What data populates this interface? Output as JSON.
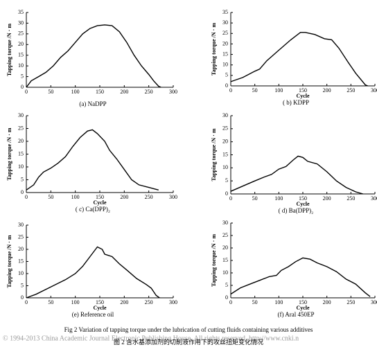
{
  "chart_data": [
    {
      "type": "line",
      "subtitle": "(a)  NaDPP",
      "ylabel": "Tapping torque /N · m",
      "color": "#000000",
      "xlim": [
        0,
        300
      ],
      "xticks": [
        0,
        50,
        100,
        150,
        200,
        250,
        300
      ],
      "ylim": [
        0,
        35
      ],
      "yticks": [
        0,
        5,
        10,
        15,
        20,
        25,
        30,
        35
      ],
      "x": [
        0,
        10,
        25,
        40,
        55,
        70,
        85,
        100,
        115,
        130,
        145,
        160,
        175,
        190,
        205,
        220,
        235,
        250,
        260,
        270,
        275
      ],
      "values": [
        0,
        3,
        5,
        7,
        10,
        14,
        17,
        21,
        25,
        27.5,
        28.8,
        29.2,
        28.8,
        26,
        21,
        15,
        10,
        6,
        3,
        0.5,
        0
      ]
    },
    {
      "type": "line",
      "subtitle": "( b)  KDPP",
      "xlabel": "Cycle",
      "ylabel": "Tapping torque /N · m",
      "color": "#000000",
      "xlim": [
        0,
        300
      ],
      "xticks": [
        0,
        50,
        100,
        150,
        200,
        250,
        300
      ],
      "ylim": [
        0,
        35
      ],
      "yticks": [
        0,
        5,
        10,
        15,
        20,
        25,
        30,
        35
      ],
      "x": [
        0,
        25,
        50,
        60,
        75,
        100,
        125,
        145,
        155,
        175,
        195,
        210,
        225,
        245,
        260,
        280,
        285
      ],
      "values": [
        2,
        4,
        7,
        8,
        12,
        17,
        22,
        25.5,
        25.5,
        24.5,
        22.5,
        22,
        18,
        11,
        6,
        0.5,
        0
      ]
    },
    {
      "type": "line",
      "subtitle": "( c)  Ca(DPP)₂",
      "xlabel": "Cycle",
      "ylabel": "Tapping torque /N · m",
      "color": "#000000",
      "xlim": [
        0,
        300
      ],
      "xticks": [
        0,
        50,
        100,
        150,
        200,
        250,
        300
      ],
      "ylim": [
        0,
        30
      ],
      "yticks": [
        0,
        5,
        10,
        15,
        20,
        25,
        30
      ],
      "x": [
        0,
        15,
        25,
        35,
        50,
        65,
        80,
        95,
        110,
        125,
        135,
        145,
        160,
        170,
        185,
        200,
        215,
        230,
        250,
        270
      ],
      "values": [
        1,
        3,
        6,
        8,
        9.5,
        11.5,
        14,
        18,
        21.5,
        24,
        24.5,
        23,
        20,
        16.5,
        13,
        9,
        5,
        3,
        2,
        1
      ]
    },
    {
      "type": "line",
      "subtitle": "( d)  Ba(DPP)₂",
      "xlabel": "Cycle",
      "ylabel": "Tapping torque /N · m",
      "color": "#000000",
      "xlim": [
        0,
        300
      ],
      "xticks": [
        0,
        50,
        100,
        150,
        200,
        250,
        300
      ],
      "ylim": [
        0,
        30
      ],
      "yticks": [
        0,
        5,
        10,
        15,
        20,
        25,
        30
      ],
      "x": [
        0,
        25,
        50,
        70,
        85,
        100,
        115,
        130,
        140,
        150,
        160,
        180,
        200,
        220,
        240,
        260,
        275
      ],
      "values": [
        1,
        3,
        5,
        6.5,
        7.5,
        9.5,
        10.5,
        13,
        14.5,
        14,
        12.5,
        11.5,
        8.5,
        5,
        2.5,
        0.8,
        0
      ]
    },
    {
      "type": "line",
      "subtitle": "(e)  Reference oil",
      "xlabel": "Cycle",
      "ylabel": "Tapping torque /N · m",
      "color": "#000000",
      "xlim": [
        0,
        300
      ],
      "xticks": [
        0,
        50,
        100,
        150,
        200,
        250,
        300
      ],
      "ylim": [
        0,
        30
      ],
      "yticks": [
        0,
        5,
        10,
        15,
        20,
        25,
        30
      ],
      "x": [
        0,
        20,
        40,
        60,
        80,
        100,
        115,
        130,
        145,
        155,
        160,
        175,
        190,
        205,
        225,
        245,
        255,
        265,
        272
      ],
      "values": [
        0,
        1.5,
        3.5,
        5.5,
        7.5,
        10,
        13,
        17,
        21,
        20,
        18,
        17,
        14,
        11.5,
        8,
        5.5,
        4,
        1,
        0
      ]
    },
    {
      "type": "line",
      "subtitle": "(f)  Aral 450EP",
      "xlabel": "Cycle",
      "ylabel": "Tapping torque /N · m",
      "color": "#000000",
      "xlim": [
        0,
        300
      ],
      "xticks": [
        0,
        50,
        100,
        150,
        200,
        250,
        300
      ],
      "ylim": [
        0,
        30
      ],
      "yticks": [
        0,
        5,
        10,
        15,
        20,
        25,
        30
      ],
      "x": [
        0,
        20,
        40,
        60,
        80,
        95,
        105,
        120,
        135,
        150,
        165,
        180,
        200,
        220,
        240,
        260,
        280,
        290
      ],
      "values": [
        1.5,
        4,
        5.5,
        7,
        8.5,
        9,
        11,
        12.5,
        14.5,
        16,
        15.5,
        14,
        12.5,
        10.5,
        7.5,
        5.5,
        2,
        0.5
      ]
    }
  ],
  "caption": {
    "english": "Fig 2   Variation of tapping torque under the lubrication of cutting fluids containing various additives",
    "chinese": "图 2   含水基添加剂的切削液作用下的攻丝扭矩变化情况"
  },
  "watermark": "© 1994-2013 China Academic Journal Electronic Publishing House. All rights reserved.    http://www.cnki.n"
}
